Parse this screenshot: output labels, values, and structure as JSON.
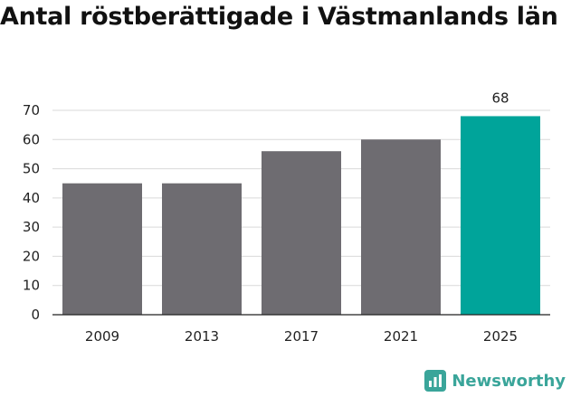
{
  "chart_data": {
    "type": "bar",
    "title": "Antal röstberättigade i Västmanlands län",
    "categories": [
      "2009",
      "2013",
      "2017",
      "2021",
      "2025"
    ],
    "values": [
      45,
      45,
      56,
      60,
      68
    ],
    "ylim": [
      0,
      70
    ],
    "yticks": [
      0,
      10,
      20,
      30,
      40,
      50,
      60,
      70
    ],
    "grid": true,
    "bar_colors": [
      "#6e6c71",
      "#6e6c71",
      "#6e6c71",
      "#6e6c71",
      "#00a49a"
    ],
    "data_labels": [
      "",
      "",
      "",
      "",
      "68"
    ]
  },
  "brand": {
    "name": "Newsworthy",
    "icon": "newsworthy-logo-icon",
    "color": "#3aa59a"
  }
}
